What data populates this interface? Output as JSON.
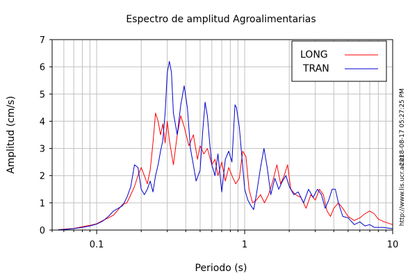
{
  "chart_data": {
    "type": "line",
    "title": "Espectro de amplitud Agroalimentarias",
    "xlabel": "Periodo (s)",
    "ylabel": "Amplitud (cm/s)",
    "xscale": "log",
    "xlim": [
      0.05,
      10
    ],
    "ylim": [
      0,
      7
    ],
    "x_ticks": [
      {
        "value": 0.1,
        "label": "0.1"
      },
      {
        "value": 1,
        "label": "1"
      },
      {
        "value": 10,
        "label": "10"
      }
    ],
    "y_ticks": [
      0,
      1,
      2,
      3,
      4,
      5,
      6,
      7
    ],
    "grid": true,
    "legend_position": "top-right",
    "series": [
      {
        "name": "LONG",
        "color": "#ff0000",
        "points": [
          [
            0.055,
            0.01
          ],
          [
            0.06,
            0.03
          ],
          [
            0.07,
            0.06
          ],
          [
            0.08,
            0.12
          ],
          [
            0.09,
            0.17
          ],
          [
            0.1,
            0.23
          ],
          [
            0.11,
            0.35
          ],
          [
            0.12,
            0.45
          ],
          [
            0.13,
            0.55
          ],
          [
            0.14,
            0.75
          ],
          [
            0.15,
            0.95
          ],
          [
            0.16,
            1.0
          ],
          [
            0.17,
            1.3
          ],
          [
            0.18,
            1.6
          ],
          [
            0.19,
            2.0
          ],
          [
            0.2,
            2.3
          ],
          [
            0.21,
            2.0
          ],
          [
            0.22,
            1.7
          ],
          [
            0.23,
            2.2
          ],
          [
            0.24,
            3.2
          ],
          [
            0.25,
            4.3
          ],
          [
            0.26,
            4.0
          ],
          [
            0.27,
            3.5
          ],
          [
            0.28,
            3.9
          ],
          [
            0.29,
            3.2
          ],
          [
            0.3,
            4.0
          ],
          [
            0.31,
            3.3
          ],
          [
            0.33,
            2.4
          ],
          [
            0.35,
            3.5
          ],
          [
            0.37,
            4.2
          ],
          [
            0.39,
            3.8
          ],
          [
            0.42,
            3.1
          ],
          [
            0.45,
            3.5
          ],
          [
            0.48,
            2.6
          ],
          [
            0.5,
            3.1
          ],
          [
            0.53,
            2.8
          ],
          [
            0.56,
            3.0
          ],
          [
            0.6,
            2.4
          ],
          [
            0.63,
            2.6
          ],
          [
            0.66,
            2.0
          ],
          [
            0.7,
            2.5
          ],
          [
            0.74,
            1.8
          ],
          [
            0.78,
            2.3
          ],
          [
            0.82,
            2.0
          ],
          [
            0.87,
            1.7
          ],
          [
            0.92,
            1.9
          ],
          [
            0.97,
            2.9
          ],
          [
            1.02,
            2.7
          ],
          [
            1.07,
            1.5
          ],
          [
            1.13,
            1.0
          ],
          [
            1.2,
            1.1
          ],
          [
            1.28,
            1.3
          ],
          [
            1.36,
            1.0
          ],
          [
            1.45,
            1.3
          ],
          [
            1.55,
            1.8
          ],
          [
            1.65,
            2.4
          ],
          [
            1.75,
            1.7
          ],
          [
            1.85,
            2.0
          ],
          [
            1.95,
            2.4
          ],
          [
            2.05,
            1.5
          ],
          [
            2.2,
            1.3
          ],
          [
            2.4,
            1.2
          ],
          [
            2.6,
            0.8
          ],
          [
            2.8,
            1.3
          ],
          [
            3.0,
            1.1
          ],
          [
            3.2,
            1.5
          ],
          [
            3.4,
            1.3
          ],
          [
            3.6,
            0.7
          ],
          [
            3.8,
            0.5
          ],
          [
            4.0,
            0.8
          ],
          [
            4.3,
            1.0
          ],
          [
            4.6,
            0.8
          ],
          [
            5.0,
            0.5
          ],
          [
            5.5,
            0.35
          ],
          [
            6.0,
            0.45
          ],
          [
            6.5,
            0.6
          ],
          [
            7.0,
            0.7
          ],
          [
            7.5,
            0.6
          ],
          [
            8.0,
            0.4
          ],
          [
            8.8,
            0.3
          ],
          [
            10.0,
            0.2
          ]
        ]
      },
      {
        "name": "TRAN",
        "color": "#0000cc",
        "points": [
          [
            0.055,
            0.01
          ],
          [
            0.06,
            0.02
          ],
          [
            0.07,
            0.05
          ],
          [
            0.08,
            0.1
          ],
          [
            0.09,
            0.15
          ],
          [
            0.1,
            0.22
          ],
          [
            0.11,
            0.33
          ],
          [
            0.12,
            0.5
          ],
          [
            0.13,
            0.7
          ],
          [
            0.14,
            0.8
          ],
          [
            0.15,
            0.9
          ],
          [
            0.16,
            1.2
          ],
          [
            0.17,
            1.6
          ],
          [
            0.18,
            2.4
          ],
          [
            0.19,
            2.3
          ],
          [
            0.2,
            1.5
          ],
          [
            0.21,
            1.3
          ],
          [
            0.22,
            1.5
          ],
          [
            0.23,
            1.8
          ],
          [
            0.24,
            1.4
          ],
          [
            0.25,
            2.0
          ],
          [
            0.26,
            2.4
          ],
          [
            0.27,
            2.9
          ],
          [
            0.28,
            3.3
          ],
          [
            0.29,
            4.3
          ],
          [
            0.3,
            5.8
          ],
          [
            0.31,
            6.2
          ],
          [
            0.32,
            5.8
          ],
          [
            0.33,
            4.3
          ],
          [
            0.35,
            3.5
          ],
          [
            0.37,
            4.6
          ],
          [
            0.39,
            5.3
          ],
          [
            0.41,
            4.5
          ],
          [
            0.43,
            3.0
          ],
          [
            0.45,
            2.4
          ],
          [
            0.47,
            1.8
          ],
          [
            0.5,
            2.2
          ],
          [
            0.52,
            3.6
          ],
          [
            0.54,
            4.7
          ],
          [
            0.56,
            4.2
          ],
          [
            0.58,
            3.2
          ],
          [
            0.6,
            2.4
          ],
          [
            0.63,
            2.0
          ],
          [
            0.66,
            2.8
          ],
          [
            0.7,
            1.4
          ],
          [
            0.74,
            2.6
          ],
          [
            0.78,
            2.9
          ],
          [
            0.82,
            2.5
          ],
          [
            0.86,
            4.6
          ],
          [
            0.88,
            4.5
          ],
          [
            0.92,
            3.8
          ],
          [
            0.96,
            2.6
          ],
          [
            1.0,
            1.5
          ],
          [
            1.05,
            1.1
          ],
          [
            1.1,
            0.9
          ],
          [
            1.15,
            0.75
          ],
          [
            1.2,
            1.3
          ],
          [
            1.28,
            2.3
          ],
          [
            1.35,
            3.0
          ],
          [
            1.42,
            2.3
          ],
          [
            1.5,
            1.3
          ],
          [
            1.6,
            1.9
          ],
          [
            1.7,
            1.5
          ],
          [
            1.8,
            1.8
          ],
          [
            1.9,
            2.0
          ],
          [
            2.0,
            1.6
          ],
          [
            2.15,
            1.3
          ],
          [
            2.3,
            1.4
          ],
          [
            2.5,
            1.0
          ],
          [
            2.7,
            1.5
          ],
          [
            2.9,
            1.2
          ],
          [
            3.1,
            1.5
          ],
          [
            3.3,
            1.3
          ],
          [
            3.5,
            0.8
          ],
          [
            3.7,
            1.1
          ],
          [
            3.9,
            1.5
          ],
          [
            4.1,
            1.5
          ],
          [
            4.3,
            1.0
          ],
          [
            4.6,
            0.5
          ],
          [
            5.0,
            0.45
          ],
          [
            5.5,
            0.2
          ],
          [
            6.0,
            0.3
          ],
          [
            6.5,
            0.15
          ],
          [
            7.0,
            0.2
          ],
          [
            7.5,
            0.1
          ],
          [
            8.5,
            0.1
          ],
          [
            10.0,
            0.05
          ]
        ]
      }
    ]
  },
  "side_text": "2018-08-17 05:27:25 PM",
  "side_url": "http://www.lis.ucr.ac.cr"
}
